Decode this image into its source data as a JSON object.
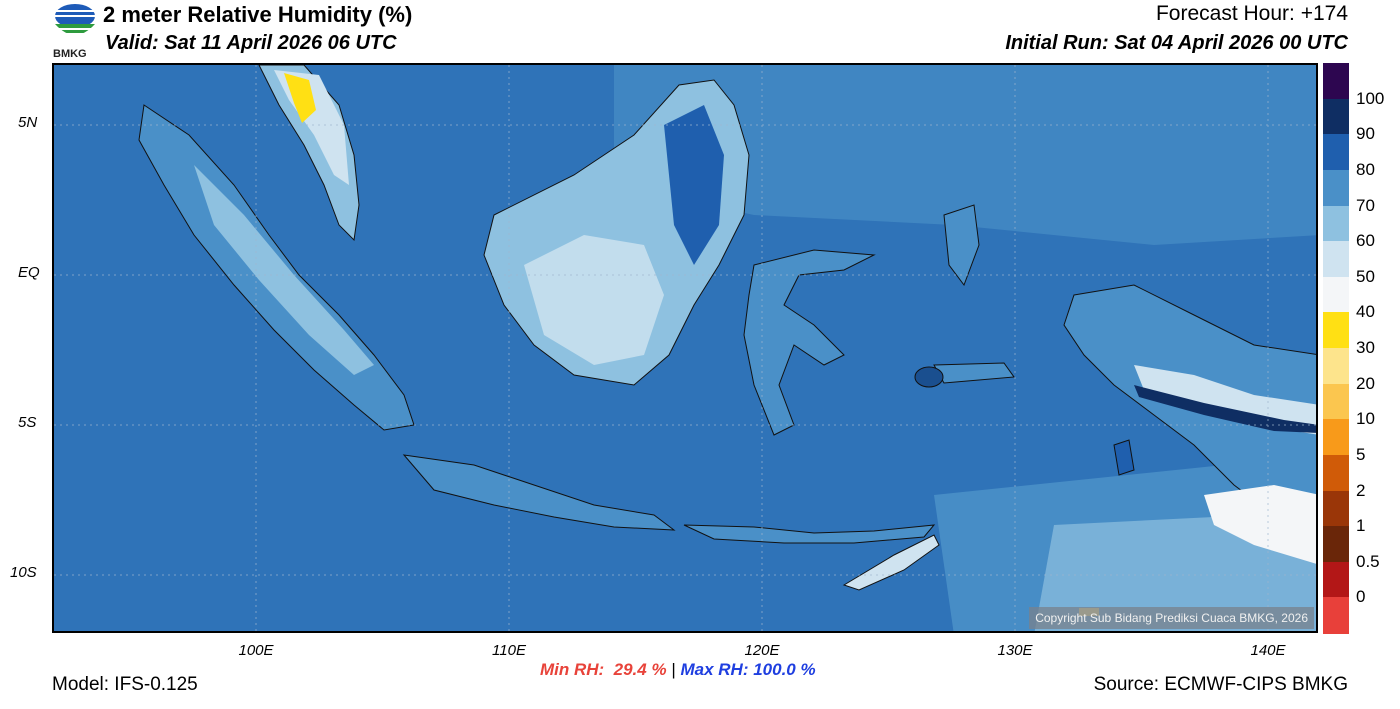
{
  "header": {
    "logo_text": "BMKG",
    "title": "2 meter Relative Humidity (%)",
    "valid": "Valid: Sat 11 April 2026 06 UTC",
    "forecast_hour": "Forecast Hour: +174",
    "initial_run": "Initial Run: Sat 04 April 2026 00 UTC"
  },
  "map": {
    "copyright": "Copyright Sub Bidang Prediksi Cuaca BMKG, 2026",
    "lat_labels": [
      "5N",
      "EQ",
      "5S",
      "10S"
    ],
    "lon_labels": [
      "100E",
      "110E",
      "120E",
      "130E",
      "140E"
    ],
    "ocean_color": "#2f73b8"
  },
  "colorbar": {
    "labels": [
      "100",
      "90",
      "80",
      "70",
      "60",
      "50",
      "40",
      "30",
      "20",
      "10",
      "5",
      "2",
      "1",
      "0.5",
      "0"
    ],
    "colors": [
      "#2d0650",
      "#0f2e63",
      "#1f5fae",
      "#4a90c8",
      "#8ec1e0",
      "#cfe3f0",
      "#f4f6f8",
      "#ffe014",
      "#fde48c",
      "#fbc64f",
      "#f89a1a",
      "#d05b08",
      "#9a3608",
      "#6a2609",
      "#b31717",
      "#e8403a"
    ]
  },
  "footer": {
    "min_rh": "Min RH:  29.4 %",
    "separator": " | ",
    "max_rh": "Max RH: 100.0 %",
    "model": "Model: IFS-0.125",
    "source": "Source: ECMWF-CIPS BMKG"
  }
}
